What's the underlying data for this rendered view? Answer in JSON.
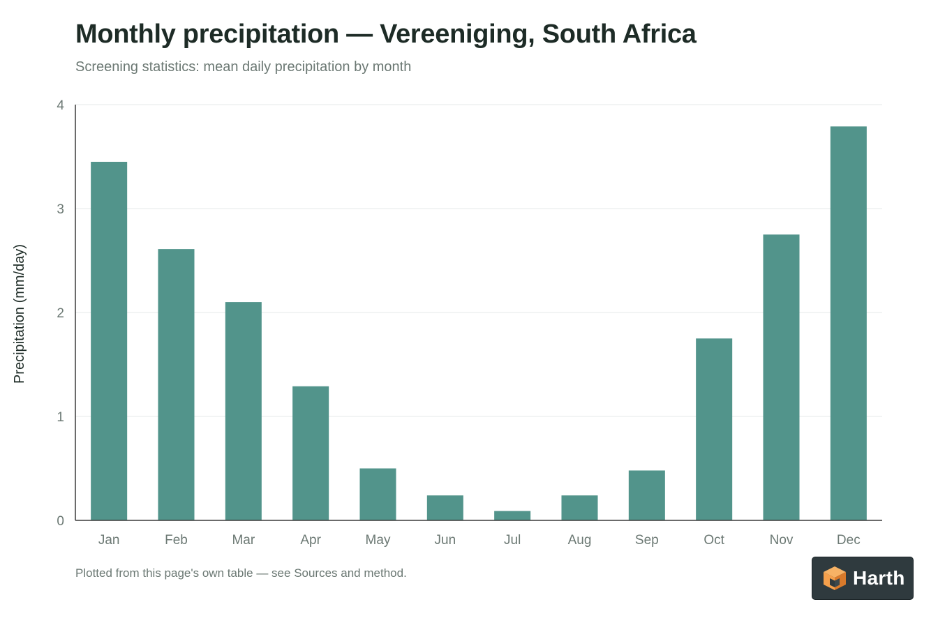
{
  "title": "Monthly precipitation — Vereeniging, South Africa",
  "subtitle": "Screening statistics: mean daily precipitation by month",
  "footnote": "Plotted from this page's own table — see Sources and method.",
  "logo": {
    "text": "Harth",
    "icon": "harth-cube-icon",
    "colors": {
      "background": "#2f3a3e",
      "cube_light": "#f5a04c",
      "cube_dark": "#d97a2b"
    }
  },
  "colors": {
    "bar": "#52948b",
    "grid": "#e6e9e8",
    "axis": "#3a3a3a",
    "tick_text": "#6b7873",
    "ylabel_text": "#1d2b26"
  },
  "chart_data": {
    "type": "bar",
    "title": "Monthly precipitation — Vereeniging, South Africa",
    "subtitle": "Screening statistics: mean daily precipitation by month",
    "xlabel": "",
    "ylabel": "Precipitation (mm/day)",
    "categories": [
      "Jan",
      "Feb",
      "Mar",
      "Apr",
      "May",
      "Jun",
      "Jul",
      "Aug",
      "Sep",
      "Oct",
      "Nov",
      "Dec"
    ],
    "values": [
      3.45,
      2.61,
      2.1,
      1.29,
      0.5,
      0.24,
      0.09,
      0.24,
      0.48,
      1.75,
      2.75,
      3.79
    ],
    "ylim": [
      0,
      4
    ],
    "yticks": [
      0,
      1,
      2,
      3,
      4
    ],
    "grid": true,
    "legend": "none"
  }
}
